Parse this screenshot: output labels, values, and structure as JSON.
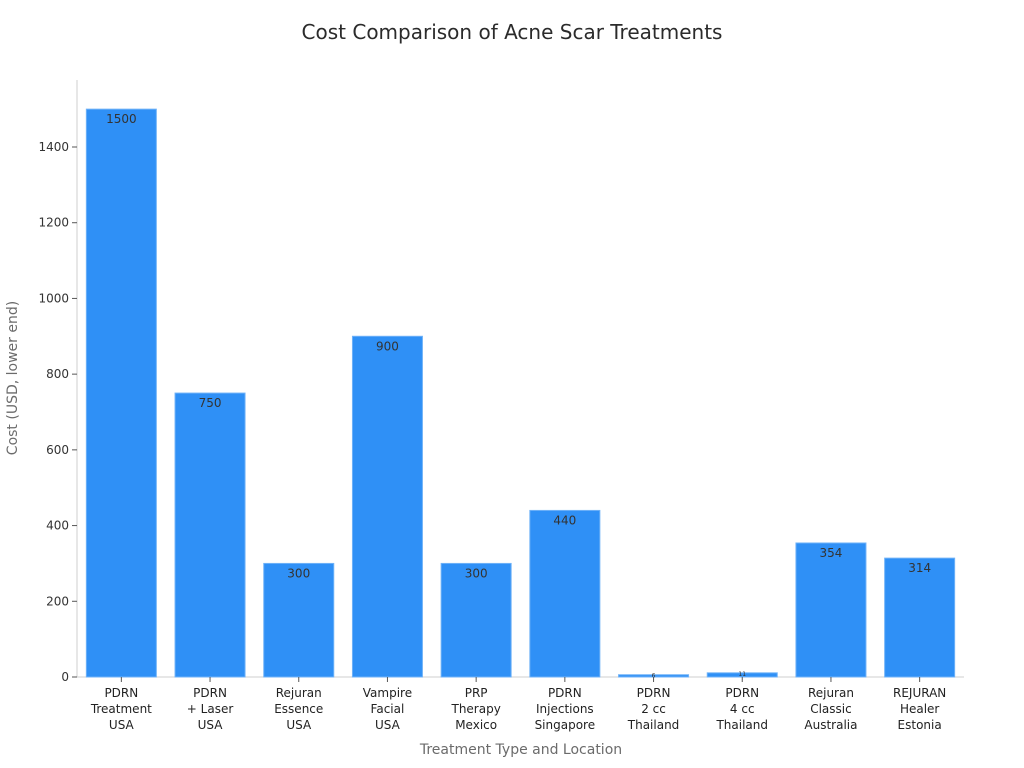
{
  "chart_data": {
    "type": "bar",
    "title": "Cost Comparison of Acne Scar Treatments",
    "xlabel": "Treatment Type and Location",
    "ylabel": "Cost (USD, lower end)",
    "categories": [
      [
        "PDRN",
        "Treatment",
        "USA"
      ],
      [
        "PDRN",
        "+ Laser",
        "USA"
      ],
      [
        "Rejuran",
        "Essence",
        "USA"
      ],
      [
        "Vampire",
        "Facial",
        "USA"
      ],
      [
        "PRP",
        "Therapy",
        "Mexico"
      ],
      [
        "PDRN",
        "Injections",
        "Singapore"
      ],
      [
        "PDRN",
        "2 cc",
        "Thailand"
      ],
      [
        "PDRN",
        "4 cc",
        "Thailand"
      ],
      [
        "Rejuran",
        "Classic",
        "Australia"
      ],
      [
        "REJURAN",
        "Healer",
        "Estonia"
      ]
    ],
    "values": [
      1500,
      750,
      300,
      900,
      300,
      440,
      6,
      11,
      354,
      314
    ],
    "data_labels": [
      "1500",
      "750",
      "300",
      "900",
      "300",
      "440",
      "6",
      "11",
      "354",
      "314"
    ],
    "yticks": [
      0,
      200,
      400,
      600,
      800,
      1000,
      1200,
      1400
    ],
    "ylim": [
      0,
      1577
    ],
    "grid": false,
    "legend": null,
    "bar_color": "#2f90f6"
  }
}
